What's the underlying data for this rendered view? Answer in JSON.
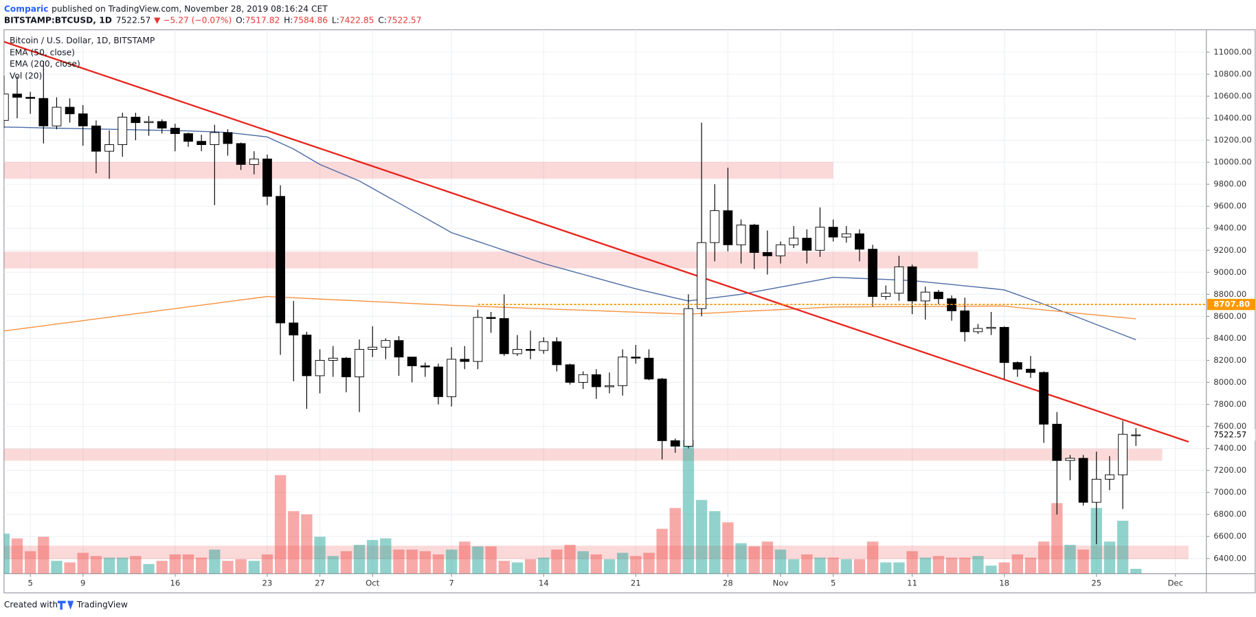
{
  "header": {
    "author": "Comparic",
    "published": "published on TradingView.com, November 28, 2019 08:16:24 CET",
    "symbol": "BITSTAMP:BTCUSD, 1D",
    "last": "7522.57",
    "change": "▼ −5.27 (−0.07%)",
    "ohlc": [
      {
        "label": "O:",
        "value": "7517.82"
      },
      {
        "label": "H:",
        "value": "7584.86"
      },
      {
        "label": "L:",
        "value": "7422.85"
      },
      {
        "label": "C:",
        "value": "7522.57"
      }
    ]
  },
  "footer": {
    "created": "Created with",
    "brand": "TradingView"
  },
  "chart_data": {
    "type": "candlestick",
    "title": "Bitcoin / U.S. Dollar, 1D, BITSTAMP",
    "up_color": "#ffffff",
    "down_color": "#000000",
    "grid": true,
    "xlim": [
      0,
      91.35
    ],
    "ylim": [
      6262,
      11204
    ],
    "xticks": [
      {
        "value": 2,
        "label": "5"
      },
      {
        "value": 6,
        "label": "9"
      },
      {
        "value": 13,
        "label": "16"
      },
      {
        "value": 20,
        "label": "23"
      },
      {
        "value": 24,
        "label": "27"
      },
      {
        "value": 28,
        "label": "Oct"
      },
      {
        "value": 34,
        "label": "7"
      },
      {
        "value": 41,
        "label": "14"
      },
      {
        "value": 48,
        "label": "21"
      },
      {
        "value": 55,
        "label": "28"
      },
      {
        "value": 59,
        "label": "Nov"
      },
      {
        "value": 63,
        "label": "5"
      },
      {
        "value": 69,
        "label": "11"
      },
      {
        "value": 76,
        "label": "18"
      },
      {
        "value": 83,
        "label": "25"
      },
      {
        "value": 89,
        "label": "Dec"
      }
    ],
    "yticks": [
      {
        "value": 6400,
        "label": "6400.00"
      },
      {
        "value": 6600,
        "label": "6600.00"
      },
      {
        "value": 6800,
        "label": "6800.00"
      },
      {
        "value": 7000,
        "label": "7000.00"
      },
      {
        "value": 7200,
        "label": "7200.00"
      },
      {
        "value": 7400,
        "label": "7400.00"
      },
      {
        "value": 7600,
        "label": "7600.00"
      },
      {
        "value": 7800,
        "label": "7800.00"
      },
      {
        "value": 8000,
        "label": "8000.00"
      },
      {
        "value": 8200,
        "label": "8200.00"
      },
      {
        "value": 8400,
        "label": "8400.00"
      },
      {
        "value": 8600,
        "label": "8600.00"
      },
      {
        "value": 8800,
        "label": "8800.00"
      },
      {
        "value": 9000,
        "label": "9000.00"
      },
      {
        "value": 9200,
        "label": "9200.00"
      },
      {
        "value": 9400,
        "label": "9400.00"
      },
      {
        "value": 9600,
        "label": "9600.00"
      },
      {
        "value": 9800,
        "label": "9800.00"
      },
      {
        "value": 10000,
        "label": "10000.00"
      },
      {
        "value": 10200,
        "label": "10200.00"
      },
      {
        "value": 10400,
        "label": "10400.00"
      },
      {
        "value": 10600,
        "label": "10600.00"
      },
      {
        "value": 10800,
        "label": "10800.00"
      },
      {
        "value": 11000,
        "label": "11000.00"
      }
    ],
    "candles": [
      [
        10380,
        10790,
        10310,
        10620
      ],
      [
        10620,
        10780,
        10400,
        10590
      ],
      [
        10590,
        10640,
        10440,
        10580
      ],
      [
        10580,
        10920,
        10170,
        10330
      ],
      [
        10330,
        10590,
        10300,
        10500
      ],
      [
        10500,
        10580,
        10360,
        10440
      ],
      [
        10440,
        10520,
        10150,
        10330
      ],
      [
        10330,
        10380,
        9900,
        10100
      ],
      [
        10100,
        10290,
        9850,
        10160
      ],
      [
        10160,
        10450,
        10050,
        10410
      ],
      [
        10410,
        10450,
        10200,
        10360
      ],
      [
        10360,
        10420,
        10240,
        10370
      ],
      [
        10370,
        10390,
        10260,
        10310
      ],
      [
        10310,
        10350,
        10100,
        10260
      ],
      [
        10260,
        10270,
        10140,
        10190
      ],
      [
        10190,
        10250,
        10100,
        10160
      ],
      [
        10160,
        10340,
        9610,
        10270
      ],
      [
        10270,
        10300,
        10060,
        10170
      ],
      [
        10170,
        10180,
        9930,
        9980
      ],
      [
        9980,
        10100,
        9890,
        10030
      ],
      [
        10030,
        10070,
        9610,
        9690
      ],
      [
        9690,
        9790,
        8250,
        8540
      ],
      [
        8540,
        8740,
        8010,
        8430
      ],
      [
        8430,
        8460,
        7760,
        8060
      ],
      [
        8060,
        8300,
        7900,
        8200
      ],
      [
        8200,
        8330,
        8050,
        8220
      ],
      [
        8220,
        8230,
        7910,
        8050
      ],
      [
        8050,
        8390,
        7730,
        8300
      ],
      [
        8300,
        8510,
        8230,
        8320
      ],
      [
        8320,
        8400,
        8210,
        8380
      ],
      [
        8380,
        8420,
        8060,
        8230
      ],
      [
        8230,
        8230,
        8000,
        8150
      ],
      [
        8150,
        8180,
        8050,
        8140
      ],
      [
        8140,
        8170,
        7800,
        7870
      ],
      [
        7870,
        8320,
        7780,
        8210
      ],
      [
        8210,
        8330,
        8120,
        8190
      ],
      [
        8190,
        8660,
        8120,
        8590
      ],
      [
        8590,
        8640,
        8450,
        8580
      ],
      [
        8580,
        8800,
        8240,
        8260
      ],
      [
        8260,
        8430,
        8240,
        8300
      ],
      [
        8300,
        8470,
        8210,
        8290
      ],
      [
        8290,
        8410,
        8260,
        8370
      ],
      [
        8370,
        8410,
        8100,
        8160
      ],
      [
        8160,
        8170,
        7980,
        8000
      ],
      [
        8000,
        8100,
        7940,
        8070
      ],
      [
        8070,
        8120,
        7850,
        7960
      ],
      [
        7960,
        8090,
        7900,
        7970
      ],
      [
        7970,
        8300,
        7880,
        8230
      ],
      [
        8230,
        8340,
        8170,
        8220
      ],
      [
        8220,
        8300,
        8020,
        8030
      ],
      [
        8030,
        8040,
        7300,
        7470
      ],
      [
        7470,
        7490,
        7360,
        7420
      ],
      [
        7420,
        8800,
        7400,
        8670
      ],
      [
        8670,
        10360,
        8600,
        9270
      ],
      [
        9270,
        9800,
        9100,
        9560
      ],
      [
        9560,
        9950,
        9190,
        9250
      ],
      [
        9250,
        9480,
        9080,
        9430
      ],
      [
        9430,
        9440,
        9030,
        9180
      ],
      [
        9180,
        9380,
        8980,
        9150
      ],
      [
        9150,
        9280,
        9080,
        9250
      ],
      [
        9250,
        9420,
        9220,
        9310
      ],
      [
        9310,
        9390,
        9080,
        9200
      ],
      [
        9200,
        9590,
        9140,
        9410
      ],
      [
        9410,
        9480,
        9280,
        9320
      ],
      [
        9320,
        9420,
        9270,
        9350
      ],
      [
        9350,
        9390,
        9100,
        9210
      ],
      [
        9210,
        9250,
        8690,
        8780
      ],
      [
        8780,
        8880,
        8750,
        8810
      ],
      [
        8810,
        9150,
        8740,
        9050
      ],
      [
        9050,
        9070,
        8620,
        8740
      ],
      [
        8740,
        8870,
        8570,
        8820
      ],
      [
        8820,
        8840,
        8710,
        8760
      ],
      [
        8760,
        8790,
        8560,
        8650
      ],
      [
        8650,
        8770,
        8370,
        8460
      ],
      [
        8460,
        8530,
        8440,
        8490
      ],
      [
        8490,
        8640,
        8430,
        8500
      ],
      [
        8500,
        8510,
        8030,
        8180
      ],
      [
        8180,
        8190,
        8050,
        8120
      ],
      [
        8120,
        8240,
        8040,
        8090
      ],
      [
        8090,
        8100,
        7450,
        7620
      ],
      [
        7620,
        7730,
        6800,
        7290
      ],
      [
        7290,
        7340,
        7110,
        7310
      ],
      [
        7310,
        7340,
        6880,
        6910
      ],
      [
        6910,
        7370,
        6530,
        7120
      ],
      [
        7120,
        7330,
        7020,
        7160
      ],
      [
        7160,
        7650,
        6850,
        7527.84
      ],
      [
        7517.82,
        7584.86,
        7422.85,
        7522.57
      ]
    ],
    "volume": {
      "name": "Vol (20)",
      "up_color": "rgba(38,166,154,0.5)",
      "down_color": "rgba(239,83,80,0.5)",
      "values": [
        50,
        44,
        28,
        46,
        16,
        14,
        26,
        22,
        20,
        20,
        22,
        12,
        16,
        24,
        24,
        20,
        30,
        16,
        18,
        16,
        24,
        123,
        78,
        74,
        46,
        22,
        28,
        36,
        42,
        44,
        30,
        30,
        28,
        24,
        30,
        40,
        34,
        34,
        16,
        14,
        18,
        20,
        30,
        36,
        28,
        24,
        18,
        26,
        22,
        26,
        56,
        82,
        167,
        92,
        78,
        64,
        38,
        34,
        40,
        30,
        18,
        24,
        20,
        20,
        18,
        18,
        40,
        14,
        14,
        28,
        20,
        22,
        20,
        20,
        22,
        10,
        14,
        24,
        20,
        40,
        88,
        36,
        30,
        82,
        40,
        66,
        6
      ]
    },
    "series": [
      {
        "name": "EMA (50, close)",
        "color": "#4a6aa5",
        "values": [
          10320,
          10318,
          10315,
          10312,
          10310,
          10307,
          10305,
          10302,
          10300,
          10297,
          10295,
          10292,
          10290,
          10287,
          10285,
          10280,
          10277,
          10270,
          10257,
          10244,
          10230,
          10175,
          10120,
          10050,
          9980,
          9930,
          9880,
          9830,
          9763,
          9696,
          9629,
          9562,
          9495,
          9428,
          9360,
          9320,
          9280,
          9240,
          9200,
          9160,
          9120,
          9080,
          9047,
          9014,
          8981,
          8948,
          8915,
          8882,
          8850,
          8822,
          8795,
          8767,
          8740,
          8755,
          8770,
          8785,
          8800,
          8822,
          8844,
          8866,
          8888,
          8910,
          8932,
          8955,
          8950,
          8945,
          8940,
          8935,
          8930,
          8925,
          8913,
          8901,
          8889,
          8877,
          8865,
          8853,
          8840,
          8797,
          8754,
          8710,
          8664,
          8618,
          8572,
          8525,
          8479,
          8433,
          8387
        ]
      },
      {
        "name": "EMA (200, close)",
        "color": "#f7913c",
        "values": [
          8467,
          8483,
          8498,
          8514,
          8530,
          8545,
          8561,
          8577,
          8592,
          8608,
          8624,
          8639,
          8655,
          8670,
          8686,
          8702,
          8717,
          8733,
          8749,
          8764,
          8780,
          8774,
          8769,
          8763,
          8757,
          8751,
          8746,
          8740,
          8734,
          8729,
          8723,
          8717,
          8711,
          8706,
          8700,
          8696,
          8691,
          8687,
          8682,
          8678,
          8673,
          8669,
          8664,
          8660,
          8656,
          8651,
          8647,
          8642,
          8638,
          8633,
          8629,
          8624,
          8620,
          8626,
          8632,
          8638,
          8644,
          8650,
          8655,
          8661,
          8667,
          8673,
          8679,
          8685,
          8686,
          8686,
          8687,
          8688,
          8688,
          8689,
          8690,
          8690,
          8691,
          8692,
          8692,
          8693,
          8693,
          8681,
          8670,
          8658,
          8647,
          8635,
          8623,
          8612,
          8600,
          8589,
          8577
        ]
      }
    ],
    "trendline": {
      "color": "#e8231a",
      "x": [
        0,
        90
      ],
      "y": [
        11095,
        7460
      ]
    },
    "zones": [
      {
        "x": [
          0,
          63
        ],
        "y": [
          9850,
          10003
        ]
      },
      {
        "x": [
          0,
          74
        ],
        "y": [
          9035,
          9188
        ]
      },
      {
        "x": [
          0,
          88
        ],
        "y": [
          7288,
          7397
        ]
      },
      {
        "x": [
          0,
          90
        ],
        "y": [
          6393,
          6516
        ]
      }
    ],
    "zone_color": "rgba(239,83,80,0.22)",
    "hline": {
      "value": 8707.8,
      "label": "8707.80",
      "x": 36,
      "color": "#ff9800"
    }
  }
}
